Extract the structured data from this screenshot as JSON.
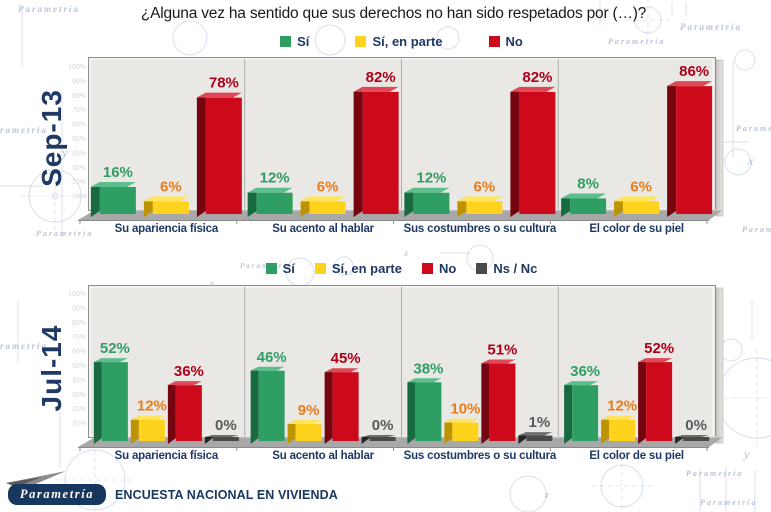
{
  "title": "¿Alguna vez ha sentido que sus derechos no han sido respetados por (…)?",
  "footer": {
    "brand": "Parametría",
    "label": "ENCUESTA NACIONAL EN VIVIENDA"
  },
  "background": {
    "brand_watermark": "Parametría",
    "axis_letters": [
      "x",
      "y",
      "z"
    ]
  },
  "axis_ticks": [
    "100%",
    "90%",
    "80%",
    "70%",
    "60%",
    "50%",
    "40%",
    "30%",
    "20%",
    "10%"
  ],
  "colors": {
    "navy": "#1F3864",
    "panel": "#E9E8E5",
    "panel_border": "#8E8E8E",
    "floor": "#A8A8A8",
    "title_text": "#1a1a1a",
    "blueprint": "#C7D2E4"
  },
  "chart_data": [
    {
      "type": "bar",
      "period": "Sep-13",
      "unit": "%",
      "ylim": [
        0,
        100
      ],
      "grid": false,
      "legend_position": "top",
      "categories": [
        "Su apariencia física",
        "Su acento al hablar",
        "Sus costumbres o su cultura",
        "El color de su piel"
      ],
      "series": [
        {
          "name": "Sí",
          "color": "#2F9E63",
          "top": "#5CBE8C",
          "side": "#186B40",
          "label_color": "#2F9E63",
          "values": [
            16,
            12,
            12,
            8
          ]
        },
        {
          "name": "Sí, en parte",
          "color": "#FFD21E",
          "top": "#FFE45C",
          "side": "#BE9300",
          "label_color": "#E87D1E",
          "values": [
            6,
            6,
            6,
            6
          ]
        },
        {
          "name": "No",
          "color": "#CC0A1C",
          "top": "#E14856",
          "side": "#75050F",
          "label_color": "#B00019",
          "values": [
            78,
            82,
            82,
            86
          ]
        }
      ]
    },
    {
      "type": "bar",
      "period": "Jul-14",
      "unit": "%",
      "ylim": [
        0,
        100
      ],
      "grid": false,
      "legend_position": "top",
      "categories": [
        "Su apariencia física",
        "Su acento al hablar",
        "Sus costumbres o su cultura",
        "El color de su piel"
      ],
      "series": [
        {
          "name": "Sí",
          "color": "#2F9E63",
          "top": "#5CBE8C",
          "side": "#186B40",
          "label_color": "#2F9E63",
          "values": [
            52,
            46,
            38,
            36
          ]
        },
        {
          "name": "Sí, en parte",
          "color": "#FFD21E",
          "top": "#FFE45C",
          "side": "#BE9300",
          "label_color": "#E87D1E",
          "values": [
            12,
            9,
            10,
            12
          ]
        },
        {
          "name": "No",
          "color": "#CC0A1C",
          "top": "#E14856",
          "side": "#75050F",
          "label_color": "#B00019",
          "values": [
            36,
            45,
            51,
            52
          ]
        },
        {
          "name": "Ns / Nc",
          "color": "#4A4A4A",
          "top": "#6E6E6E",
          "side": "#262626",
          "label_color": "#595959",
          "values": [
            0,
            0,
            1,
            0
          ]
        }
      ]
    }
  ]
}
